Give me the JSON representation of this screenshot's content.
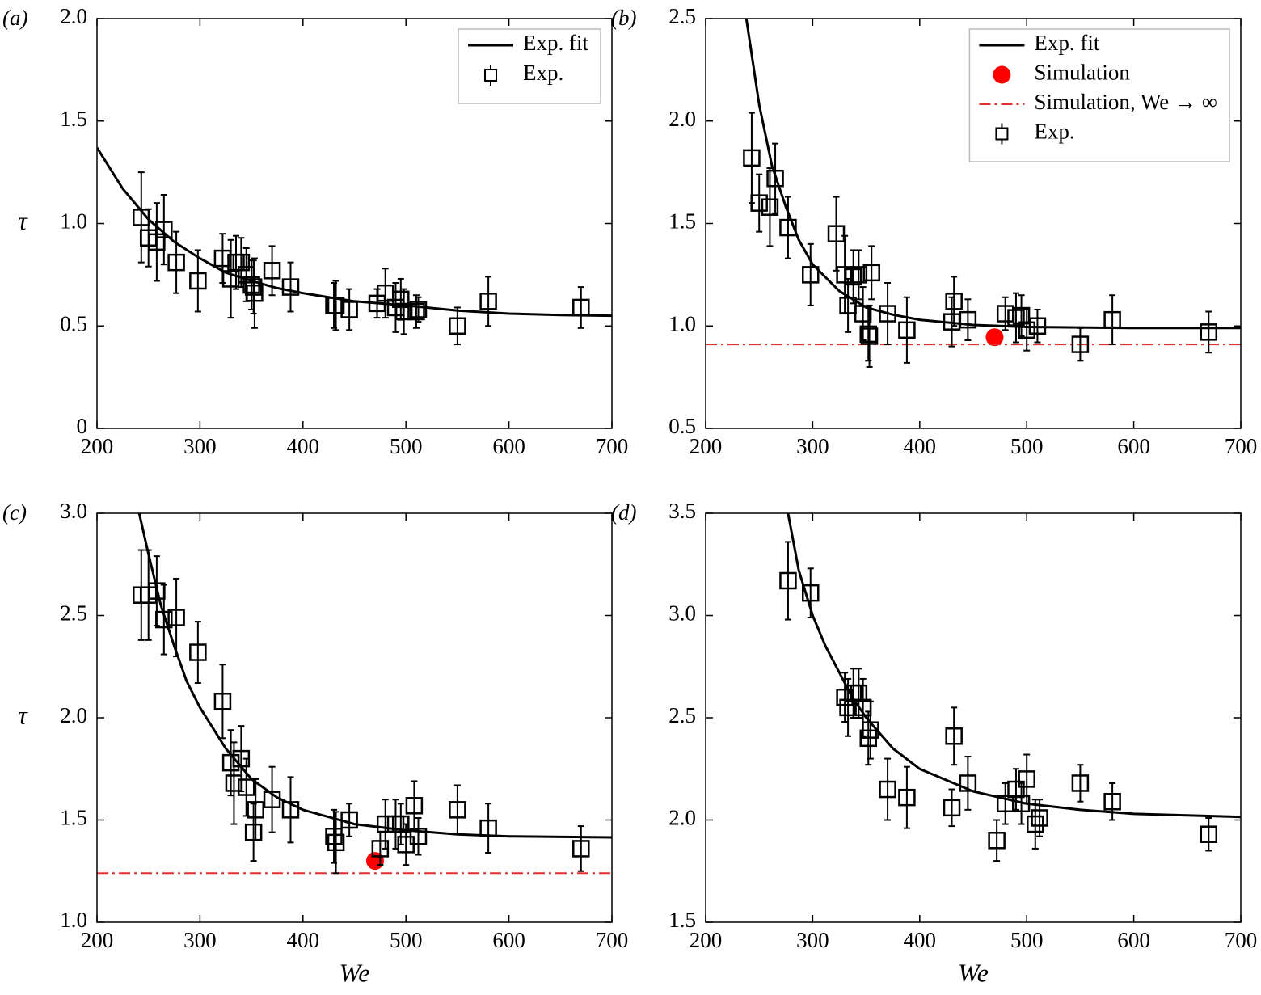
{
  "chart_data": [
    {
      "type": "scatter",
      "panel_label": "(a)",
      "ylabel": "τ",
      "xlim": [
        200,
        700
      ],
      "ylim": [
        0,
        2
      ],
      "xticks": [
        200,
        300,
        400,
        500,
        600,
        700
      ],
      "yticks": [
        0,
        0.5,
        {
          "value": 1,
          "label": "1.0"
        },
        1.5,
        {
          "value": 2,
          "label": "2.0"
        }
      ],
      "legend": "upper right",
      "series": [
        {
          "name": "Exp. fit",
          "type": "line",
          "color": "#000000",
          "x": [
            200,
            225,
            250,
            275,
            300,
            325,
            350,
            375,
            400,
            450,
            500,
            550,
            600,
            650,
            700
          ],
          "y": [
            1.37,
            1.17,
            1.02,
            0.91,
            0.83,
            0.76,
            0.72,
            0.685,
            0.66,
            0.62,
            0.6,
            0.575,
            0.56,
            0.553,
            0.55
          ]
        },
        {
          "name": "Exp.",
          "type": "errorbar",
          "color": "#000000",
          "x": [
            243,
            250,
            258,
            265,
            277,
            298,
            322,
            330,
            335,
            340,
            345,
            350,
            352,
            353,
            370,
            388,
            430,
            432,
            445,
            472,
            480,
            490,
            495,
            498,
            510,
            512,
            550,
            580,
            670
          ],
          "y": [
            1.03,
            0.93,
            0.91,
            0.97,
            0.81,
            0.72,
            0.83,
            0.73,
            0.81,
            0.81,
            0.75,
            0.7,
            0.69,
            0.66,
            0.77,
            0.69,
            0.6,
            0.6,
            0.58,
            0.61,
            0.66,
            0.59,
            0.63,
            0.57,
            0.57,
            0.58,
            0.5,
            0.62,
            0.59
          ],
          "errors": [
            0.22,
            0.14,
            0.19,
            0.17,
            0.15,
            0.15,
            0.12,
            0.19,
            0.13,
            0.12,
            0.13,
            0.12,
            0.13,
            0.17,
            0.12,
            0.12,
            0.11,
            0.12,
            0.1,
            0.07,
            0.12,
            0.12,
            0.1,
            0.11,
            0.08,
            0.06,
            0.09,
            0.12,
            0.1
          ]
        }
      ]
    },
    {
      "type": "scatter",
      "panel_label": "(b)",
      "xlim": [
        200,
        700
      ],
      "ylim": [
        0.5,
        2.5
      ],
      "xticks": [
        200,
        300,
        400,
        500,
        600,
        700
      ],
      "yticks": [
        0.5,
        {
          "value": 1,
          "label": "1.0"
        },
        1.5,
        {
          "value": 2,
          "label": "2.0"
        },
        2.5
      ],
      "legend": "upper right",
      "series": [
        {
          "name": "Exp. fit",
          "type": "line",
          "color": "#000000",
          "x": [
            238,
            250,
            262,
            275,
            287,
            300,
            325,
            350,
            375,
            400,
            450,
            500,
            600,
            700
          ],
          "y": [
            2.5,
            2.08,
            1.78,
            1.58,
            1.42,
            1.3,
            1.17,
            1.09,
            1.055,
            1.03,
            1.005,
            0.995,
            0.99,
            0.99
          ]
        },
        {
          "name": "Simulation",
          "type": "point",
          "color": "#ff0000",
          "x": [
            470
          ],
          "y": [
            0.945
          ]
        },
        {
          "name": "Simulation, We → ∞",
          "type": "hline",
          "color": "#e03030",
          "value": 0.91
        },
        {
          "name": "Exp.",
          "type": "errorbar",
          "color": "#000000",
          "x": [
            243,
            250,
            260,
            265,
            277,
            298,
            322,
            330,
            333,
            338,
            343,
            347,
            352,
            353,
            355,
            370,
            388,
            430,
            432,
            445,
            480,
            490,
            495,
            500,
            510,
            550,
            580,
            670
          ],
          "y": [
            1.82,
            1.6,
            1.58,
            1.72,
            1.48,
            1.25,
            1.45,
            1.25,
            1.1,
            1.24,
            1.25,
            1.06,
            0.96,
            0.95,
            1.26,
            1.06,
            0.98,
            1.02,
            1.12,
            1.03,
            1.06,
            1.04,
            1.05,
            0.98,
            1.0,
            0.91,
            1.03,
            0.97
          ],
          "errors": [
            0.22,
            0.14,
            0.19,
            0.17,
            0.15,
            0.15,
            0.18,
            0.19,
            0.13,
            0.13,
            0.12,
            0.13,
            0.13,
            0.15,
            0.13,
            0.15,
            0.16,
            0.12,
            0.12,
            0.1,
            0.08,
            0.12,
            0.1,
            0.1,
            0.08,
            0.08,
            0.12,
            0.1
          ]
        }
      ]
    },
    {
      "type": "scatter",
      "panel_label": "(c)",
      "ylabel": "τ",
      "xlabel": "We",
      "xlim": [
        200,
        700
      ],
      "ylim": [
        1,
        3
      ],
      "xticks": [
        200,
        300,
        400,
        500,
        600,
        700
      ],
      "yticks": [
        {
          "value": 1,
          "label": "1.0"
        },
        1.5,
        {
          "value": 2,
          "label": "2.0"
        },
        2.5,
        {
          "value": 3,
          "label": "3.0"
        }
      ],
      "series": [
        {
          "type": "line",
          "color": "#000000",
          "x": [
            241,
            250,
            262,
            275,
            287,
            300,
            325,
            350,
            375,
            400,
            450,
            500,
            550,
            600,
            700
          ],
          "y": [
            3.0,
            2.8,
            2.55,
            2.35,
            2.18,
            2.05,
            1.85,
            1.7,
            1.61,
            1.55,
            1.48,
            1.45,
            1.43,
            1.42,
            1.415
          ]
        },
        {
          "type": "point",
          "color": "#ff0000",
          "x": [
            470
          ],
          "y": [
            1.3
          ]
        },
        {
          "type": "hline",
          "color": "#e03030",
          "value": 1.24
        },
        {
          "type": "errorbar",
          "color": "#000000",
          "x": [
            243,
            250,
            258,
            265,
            277,
            298,
            322,
            330,
            333,
            340,
            345,
            352,
            354,
            370,
            388,
            430,
            432,
            445,
            475,
            480,
            490,
            495,
            500,
            508,
            512,
            550,
            580,
            670
          ],
          "y": [
            2.6,
            2.6,
            2.62,
            2.48,
            2.49,
            2.32,
            2.08,
            1.78,
            1.68,
            1.8,
            1.66,
            1.44,
            1.55,
            1.6,
            1.55,
            1.42,
            1.39,
            1.5,
            1.36,
            1.48,
            1.48,
            1.48,
            1.38,
            1.57,
            1.42,
            1.55,
            1.46,
            1.36
          ],
          "errors": [
            0.22,
            0.22,
            0.17,
            0.17,
            0.19,
            0.15,
            0.18,
            0.16,
            0.2,
            0.16,
            0.14,
            0.14,
            0.15,
            0.16,
            0.16,
            0.13,
            0.15,
            0.08,
            0.08,
            0.12,
            0.12,
            0.1,
            0.1,
            0.12,
            0.09,
            0.12,
            0.12,
            0.11
          ]
        }
      ]
    },
    {
      "type": "scatter",
      "panel_label": "(d)",
      "xlabel": "We",
      "xlim": [
        200,
        700
      ],
      "ylim": [
        1.5,
        3.5
      ],
      "xticks": [
        200,
        300,
        400,
        500,
        600,
        700
      ],
      "yticks": [
        1.5,
        {
          "value": 2,
          "label": "2.0"
        },
        2.5,
        {
          "value": 3,
          "label": "3.0"
        },
        3.5
      ],
      "series": [
        {
          "type": "line",
          "color": "#000000",
          "x": [
            277,
            287,
            300,
            312,
            325,
            337,
            350,
            375,
            400,
            450,
            500,
            550,
            600,
            700
          ],
          "y": [
            3.5,
            3.22,
            3.0,
            2.85,
            2.72,
            2.6,
            2.5,
            2.35,
            2.25,
            2.14,
            2.08,
            2.05,
            2.03,
            2.015
          ]
        },
        {
          "type": "errorbar",
          "color": "#000000",
          "x": [
            277,
            298,
            330,
            333,
            338,
            343,
            347,
            352,
            354,
            370,
            388,
            430,
            432,
            445,
            472,
            480,
            490,
            495,
            500,
            508,
            512,
            550,
            580,
            670
          ],
          "y": [
            3.17,
            3.11,
            2.6,
            2.55,
            2.62,
            2.62,
            2.55,
            2.4,
            2.44,
            2.15,
            2.11,
            2.06,
            2.41,
            2.18,
            1.9,
            2.08,
            2.15,
            2.08,
            2.2,
            1.98,
            2.01,
            2.18,
            2.09,
            1.93
          ],
          "errors": [
            0.19,
            0.12,
            0.12,
            0.14,
            0.12,
            0.12,
            0.14,
            0.13,
            0.14,
            0.15,
            0.15,
            0.09,
            0.14,
            0.13,
            0.1,
            0.1,
            0.1,
            0.1,
            0.12,
            0.12,
            0.09,
            0.09,
            0.09,
            0.08
          ]
        }
      ]
    }
  ]
}
